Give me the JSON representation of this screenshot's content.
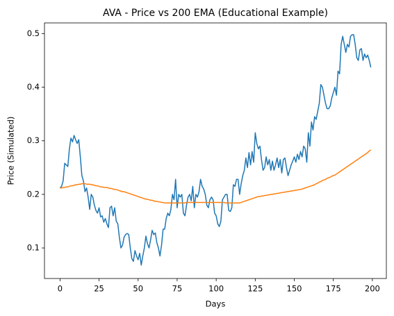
{
  "chart_data": {
    "type": "line",
    "title": "AVA - Price vs 200 EMA (Educational Example)",
    "x_label": "Days",
    "y_label": "Price (Simulated)",
    "x": [
      0,
      1,
      2,
      3,
      4,
      5,
      6,
      7,
      8,
      9,
      10,
      11,
      12,
      13,
      14,
      15,
      16,
      17,
      18,
      19,
      20,
      21,
      22,
      23,
      24,
      25,
      26,
      27,
      28,
      29,
      30,
      31,
      32,
      33,
      34,
      35,
      36,
      37,
      38,
      39,
      40,
      41,
      42,
      43,
      44,
      45,
      46,
      47,
      48,
      49,
      50,
      51,
      52,
      53,
      54,
      55,
      56,
      57,
      58,
      59,
      60,
      61,
      62,
      63,
      64,
      65,
      66,
      67,
      68,
      69,
      70,
      71,
      72,
      73,
      74,
      75,
      76,
      77,
      78,
      79,
      80,
      81,
      82,
      83,
      84,
      85,
      86,
      87,
      88,
      89,
      90,
      91,
      92,
      93,
      94,
      95,
      96,
      97,
      98,
      99,
      100,
      101,
      102,
      103,
      104,
      105,
      106,
      107,
      108,
      109,
      110,
      111,
      112,
      113,
      114,
      115,
      116,
      117,
      118,
      119,
      120,
      121,
      122,
      123,
      124,
      125,
      126,
      127,
      128,
      129,
      130,
      131,
      132,
      133,
      134,
      135,
      136,
      137,
      138,
      139,
      140,
      141,
      142,
      143,
      144,
      145,
      146,
      147,
      148,
      149,
      150,
      151,
      152,
      153,
      154,
      155,
      156,
      157,
      158,
      159,
      160,
      161,
      162,
      163,
      164,
      165,
      166,
      167,
      168,
      169,
      170,
      171,
      172,
      173,
      174,
      175,
      176,
      177,
      178,
      179,
      180,
      181,
      182,
      183,
      184,
      185,
      186,
      187,
      188,
      189,
      190,
      191,
      192,
      193,
      194,
      195,
      196,
      197,
      198,
      199
    ],
    "series": [
      {
        "color": "#1f77b4",
        "values": [
          0.212,
          0.215,
          0.225,
          0.258,
          0.255,
          0.252,
          0.285,
          0.305,
          0.298,
          0.31,
          0.302,
          0.295,
          0.302,
          0.27,
          0.235,
          0.225,
          0.205,
          0.212,
          0.195,
          0.172,
          0.2,
          0.195,
          0.18,
          0.17,
          0.165,
          0.175,
          0.158,
          0.16,
          0.148,
          0.155,
          0.145,
          0.138,
          0.175,
          0.178,
          0.16,
          0.175,
          0.15,
          0.145,
          0.12,
          0.1,
          0.105,
          0.12,
          0.125,
          0.127,
          0.125,
          0.1,
          0.08,
          0.075,
          0.095,
          0.085,
          0.078,
          0.09,
          0.068,
          0.085,
          0.1,
          0.122,
          0.108,
          0.1,
          0.115,
          0.133,
          0.125,
          0.128,
          0.11,
          0.1,
          0.085,
          0.105,
          0.135,
          0.135,
          0.155,
          0.165,
          0.16,
          0.172,
          0.2,
          0.19,
          0.228,
          0.175,
          0.2,
          0.195,
          0.2,
          0.165,
          0.16,
          0.18,
          0.195,
          0.2,
          0.188,
          0.215,
          0.175,
          0.2,
          0.195,
          0.205,
          0.228,
          0.215,
          0.21,
          0.2,
          0.18,
          0.175,
          0.19,
          0.195,
          0.19,
          0.165,
          0.16,
          0.145,
          0.14,
          0.15,
          0.19,
          0.195,
          0.2,
          0.2,
          0.17,
          0.168,
          0.175,
          0.218,
          0.215,
          0.228,
          0.228,
          0.2,
          0.22,
          0.235,
          0.245,
          0.268,
          0.25,
          0.278,
          0.255,
          0.28,
          0.26,
          0.315,
          0.295,
          0.285,
          0.29,
          0.265,
          0.245,
          0.25,
          0.27,
          0.255,
          0.265,
          0.245,
          0.262,
          0.245,
          0.255,
          0.268,
          0.25,
          0.265,
          0.24,
          0.265,
          0.268,
          0.25,
          0.235,
          0.245,
          0.255,
          0.262,
          0.27,
          0.26,
          0.275,
          0.265,
          0.28,
          0.27,
          0.29,
          0.285,
          0.26,
          0.315,
          0.29,
          0.335,
          0.32,
          0.345,
          0.34,
          0.355,
          0.37,
          0.405,
          0.4,
          0.385,
          0.37,
          0.36,
          0.36,
          0.365,
          0.38,
          0.39,
          0.4,
          0.385,
          0.43,
          0.425,
          0.48,
          0.495,
          0.48,
          0.465,
          0.48,
          0.475,
          0.495,
          0.498,
          0.498,
          0.48,
          0.455,
          0.45,
          0.47,
          0.472,
          0.45,
          0.462,
          0.455,
          0.46,
          0.45,
          0.437
        ]
      },
      {
        "color": "#ff7f0e",
        "values": [
          0.212,
          0.212,
          0.213,
          0.213,
          0.214,
          0.214,
          0.215,
          0.216,
          0.216,
          0.217,
          0.218,
          0.218,
          0.219,
          0.219,
          0.22,
          0.22,
          0.22,
          0.219,
          0.219,
          0.219,
          0.218,
          0.218,
          0.217,
          0.216,
          0.216,
          0.215,
          0.214,
          0.214,
          0.213,
          0.213,
          0.213,
          0.212,
          0.211,
          0.211,
          0.21,
          0.209,
          0.209,
          0.208,
          0.207,
          0.206,
          0.205,
          0.205,
          0.204,
          0.203,
          0.202,
          0.201,
          0.2,
          0.199,
          0.198,
          0.197,
          0.196,
          0.195,
          0.194,
          0.193,
          0.192,
          0.191,
          0.191,
          0.19,
          0.189,
          0.189,
          0.188,
          0.187,
          0.187,
          0.186,
          0.186,
          0.185,
          0.185,
          0.184,
          0.184,
          0.184,
          0.184,
          0.184,
          0.184,
          0.184,
          0.184,
          0.184,
          0.184,
          0.184,
          0.184,
          0.184,
          0.184,
          0.185,
          0.185,
          0.185,
          0.185,
          0.185,
          0.185,
          0.185,
          0.185,
          0.185,
          0.185,
          0.185,
          0.185,
          0.185,
          0.185,
          0.185,
          0.185,
          0.185,
          0.185,
          0.185,
          0.185,
          0.185,
          0.185,
          0.185,
          0.185,
          0.185,
          0.184,
          0.184,
          0.184,
          0.184,
          0.184,
          0.184,
          0.184,
          0.184,
          0.184,
          0.184,
          0.185,
          0.186,
          0.187,
          0.188,
          0.189,
          0.19,
          0.191,
          0.192,
          0.193,
          0.194,
          0.195,
          0.196,
          0.196,
          0.197,
          0.197,
          0.198,
          0.198,
          0.199,
          0.199,
          0.2,
          0.2,
          0.201,
          0.201,
          0.202,
          0.202,
          0.203,
          0.203,
          0.204,
          0.204,
          0.205,
          0.205,
          0.206,
          0.206,
          0.207,
          0.207,
          0.208,
          0.208,
          0.209,
          0.209,
          0.21,
          0.211,
          0.212,
          0.213,
          0.214,
          0.215,
          0.216,
          0.217,
          0.218,
          0.22,
          0.221,
          0.223,
          0.224,
          0.226,
          0.227,
          0.228,
          0.23,
          0.231,
          0.232,
          0.234,
          0.235,
          0.236,
          0.238,
          0.24,
          0.242,
          0.244,
          0.246,
          0.248,
          0.25,
          0.252,
          0.254,
          0.256,
          0.258,
          0.26,
          0.262,
          0.264,
          0.266,
          0.268,
          0.27,
          0.272,
          0.274,
          0.276,
          0.278,
          0.281,
          0.283
        ]
      }
    ],
    "xlim": [
      -9.95,
      208.95
    ],
    "xticks": [
      0,
      25,
      50,
      75,
      100,
      125,
      150,
      175,
      200
    ],
    "ylim": [
      0.043,
      0.52
    ],
    "yticks": [
      0.1,
      0.2,
      0.3,
      0.4,
      0.5
    ],
    "grid": false
  }
}
